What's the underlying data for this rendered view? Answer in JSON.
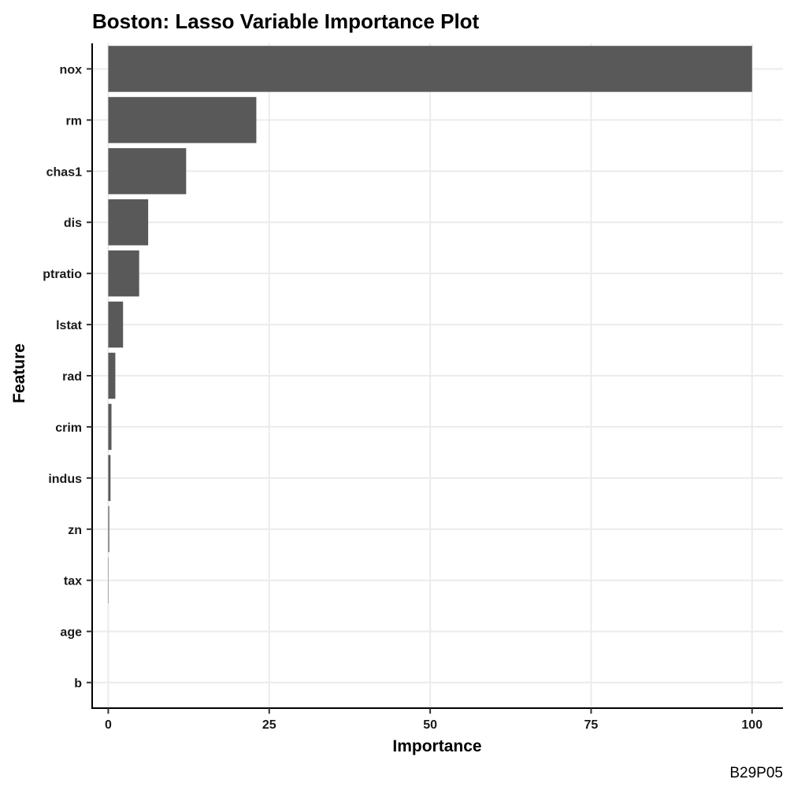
{
  "chart_data": {
    "type": "bar",
    "orientation": "horizontal",
    "title": "Boston: Lasso Variable Importance Plot",
    "xlabel": "Importance",
    "ylabel": "Feature",
    "caption": "B29P05",
    "categories": [
      "nox",
      "rm",
      "chas1",
      "dis",
      "ptratio",
      "lstat",
      "rad",
      "crim",
      "indus",
      "zn",
      "tax",
      "age",
      "b"
    ],
    "values": [
      100,
      23.0,
      12.1,
      6.2,
      4.8,
      2.3,
      1.1,
      0.5,
      0.35,
      0.15,
      0.05,
      0,
      0
    ],
    "xlim": [
      -2.5,
      104.8
    ],
    "xticks": [
      0,
      25,
      50,
      75,
      100
    ],
    "bar_color": "#595959",
    "grid": true,
    "legend": "none"
  }
}
